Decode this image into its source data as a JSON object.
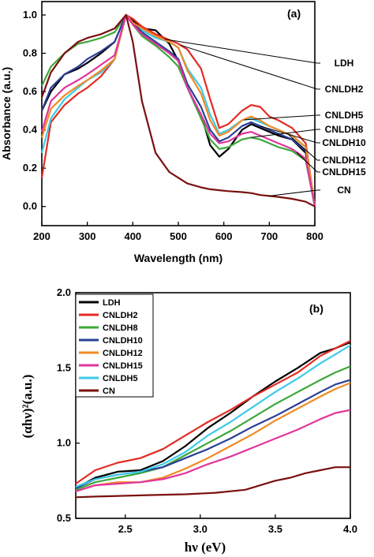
{
  "chart_data": [
    {
      "panel": "(a)",
      "type": "line",
      "xlabel": "Wavelength (nm)",
      "ylabel": "Absorbance (a.u.)",
      "xlim": [
        200,
        800
      ],
      "ylim": [
        -0.1,
        1.07
      ],
      "xticks": [
        "200",
        "300",
        "400",
        "500",
        "600",
        "700",
        "800"
      ],
      "yticks": [
        "0.0",
        "0.2",
        "0.4",
        "0.6",
        "0.8",
        "1.0"
      ],
      "annotations": [
        "LDH",
        "CNLDH2",
        "CNLDH5",
        "CNLDH8",
        "CNLDH10",
        "CNLDH12",
        "CNLDH15",
        "CN"
      ],
      "series": [
        {
          "name": "LDH",
          "color": "#000000",
          "x": [
            200,
            220,
            250,
            280,
            300,
            330,
            360,
            385,
            400,
            420,
            450,
            480,
            500,
            520,
            550,
            570,
            590,
            610,
            640,
            660,
            680,
            700,
            720,
            750,
            780,
            800
          ],
          "y": [
            0.5,
            0.6,
            0.69,
            0.72,
            0.75,
            0.8,
            0.86,
            1.0,
            0.97,
            0.93,
            0.92,
            0.85,
            0.76,
            0.62,
            0.48,
            0.32,
            0.26,
            0.3,
            0.4,
            0.43,
            0.41,
            0.39,
            0.37,
            0.35,
            0.28,
            0.0
          ]
        },
        {
          "name": "CNLDH2",
          "color": "#e32b22",
          "x": [
            200,
            220,
            250,
            280,
            300,
            330,
            360,
            385,
            400,
            420,
            450,
            480,
            500,
            520,
            550,
            570,
            590,
            610,
            640,
            660,
            680,
            700,
            720,
            750,
            780,
            800
          ],
          "y": [
            0.15,
            0.44,
            0.53,
            0.59,
            0.62,
            0.68,
            0.77,
            1.0,
            0.98,
            0.94,
            0.9,
            0.87,
            0.85,
            0.82,
            0.72,
            0.56,
            0.41,
            0.43,
            0.5,
            0.53,
            0.52,
            0.47,
            0.45,
            0.41,
            0.33,
            0.0
          ]
        },
        {
          "name": "CNLDH5",
          "color": "#3ecae8",
          "x": [
            200,
            220,
            250,
            280,
            300,
            330,
            360,
            385,
            400,
            420,
            450,
            480,
            500,
            520,
            550,
            570,
            590,
            610,
            640,
            660,
            680,
            700,
            720,
            750,
            780,
            800
          ],
          "y": [
            0.28,
            0.46,
            0.56,
            0.62,
            0.66,
            0.7,
            0.77,
            1.0,
            0.96,
            0.92,
            0.88,
            0.86,
            0.83,
            0.72,
            0.62,
            0.48,
            0.38,
            0.4,
            0.45,
            0.46,
            0.44,
            0.42,
            0.4,
            0.37,
            0.31,
            0.0
          ]
        },
        {
          "name": "CNLDH8",
          "color": "#3da83a",
          "x": [
            200,
            220,
            250,
            280,
            300,
            330,
            360,
            385,
            400,
            420,
            450,
            480,
            500,
            520,
            550,
            570,
            590,
            610,
            640,
            660,
            680,
            700,
            720,
            750,
            780,
            800
          ],
          "y": [
            0.63,
            0.73,
            0.8,
            0.85,
            0.86,
            0.88,
            0.91,
            1.0,
            0.95,
            0.89,
            0.84,
            0.78,
            0.73,
            0.62,
            0.46,
            0.35,
            0.3,
            0.31,
            0.35,
            0.36,
            0.35,
            0.33,
            0.31,
            0.29,
            0.24,
            0.0
          ]
        },
        {
          "name": "CNLDH10",
          "color": "#2b3f96",
          "x": [
            200,
            220,
            250,
            280,
            300,
            330,
            360,
            385,
            400,
            420,
            450,
            480,
            500,
            520,
            550,
            570,
            590,
            610,
            640,
            660,
            680,
            700,
            720,
            750,
            780,
            800
          ],
          "y": [
            0.5,
            0.62,
            0.69,
            0.73,
            0.77,
            0.81,
            0.86,
            1.0,
            0.96,
            0.91,
            0.86,
            0.81,
            0.77,
            0.64,
            0.52,
            0.4,
            0.34,
            0.36,
            0.42,
            0.44,
            0.42,
            0.4,
            0.38,
            0.35,
            0.29,
            0.0
          ]
        },
        {
          "name": "CNLDH12",
          "color": "#f08a24",
          "x": [
            200,
            220,
            250,
            280,
            300,
            330,
            360,
            385,
            400,
            420,
            450,
            480,
            500,
            520,
            550,
            570,
            590,
            610,
            640,
            660,
            680,
            700,
            720,
            750,
            780,
            800
          ],
          "y": [
            0.36,
            0.51,
            0.58,
            0.63,
            0.66,
            0.71,
            0.77,
            1.0,
            0.96,
            0.93,
            0.89,
            0.86,
            0.83,
            0.71,
            0.59,
            0.45,
            0.37,
            0.39,
            0.45,
            0.47,
            0.45,
            0.42,
            0.4,
            0.37,
            0.31,
            0.0
          ]
        },
        {
          "name": "CNLDH15",
          "color": "#e0359c",
          "x": [
            200,
            220,
            250,
            280,
            300,
            330,
            360,
            385,
            400,
            420,
            450,
            480,
            500,
            520,
            550,
            570,
            590,
            610,
            640,
            660,
            680,
            700,
            720,
            750,
            780,
            800
          ],
          "y": [
            0.39,
            0.55,
            0.62,
            0.66,
            0.69,
            0.74,
            0.79,
            1.0,
            0.95,
            0.9,
            0.85,
            0.8,
            0.76,
            0.62,
            0.48,
            0.38,
            0.33,
            0.34,
            0.38,
            0.39,
            0.37,
            0.35,
            0.33,
            0.3,
            0.25,
            0.0
          ]
        },
        {
          "name": "CN",
          "color": "#7a1010",
          "x": [
            200,
            220,
            250,
            280,
            300,
            330,
            360,
            385,
            400,
            420,
            450,
            480,
            500,
            520,
            550,
            570,
            590,
            610,
            640,
            660,
            680,
            700,
            720,
            750,
            780,
            800
          ],
          "y": [
            0.57,
            0.7,
            0.8,
            0.86,
            0.88,
            0.9,
            0.93,
            1.0,
            0.86,
            0.55,
            0.28,
            0.18,
            0.15,
            0.12,
            0.1,
            0.09,
            0.085,
            0.08,
            0.075,
            0.07,
            0.06,
            0.055,
            0.05,
            0.04,
            0.025,
            0.0
          ]
        }
      ]
    },
    {
      "panel": "(b)",
      "type": "line",
      "xlabel": "hν (eV)",
      "ylabel": "(αhν)²(a.u.)",
      "xlim": [
        2.17,
        4.0
      ],
      "ylim": [
        0.5,
        2.0
      ],
      "xticks": [
        "2.5",
        "3.0",
        "3.5",
        "4.0"
      ],
      "yticks": [
        "0.5",
        "1.0",
        "1.5",
        "2.0"
      ],
      "legend": "top-left",
      "series": [
        {
          "name": "LDH",
          "color": "#000000",
          "x": [
            2.17,
            2.3,
            2.45,
            2.6,
            2.75,
            2.9,
            3.05,
            3.2,
            3.35,
            3.5,
            3.65,
            3.8,
            3.9,
            4.0
          ],
          "y": [
            0.7,
            0.77,
            0.81,
            0.82,
            0.88,
            0.98,
            1.1,
            1.2,
            1.31,
            1.41,
            1.5,
            1.6,
            1.63,
            1.67
          ]
        },
        {
          "name": "CNLDH2",
          "color": "#e32b22",
          "x": [
            2.17,
            2.3,
            2.45,
            2.6,
            2.75,
            2.9,
            3.05,
            3.2,
            3.35,
            3.5,
            3.65,
            3.8,
            3.9,
            4.0
          ],
          "y": [
            0.73,
            0.82,
            0.87,
            0.9,
            0.96,
            1.05,
            1.14,
            1.22,
            1.31,
            1.39,
            1.47,
            1.58,
            1.63,
            1.68
          ]
        },
        {
          "name": "CNLDH8",
          "color": "#3da83a",
          "x": [
            2.17,
            2.3,
            2.45,
            2.6,
            2.75,
            2.9,
            3.05,
            3.2,
            3.35,
            3.5,
            3.65,
            3.8,
            3.9,
            4.0
          ],
          "y": [
            0.69,
            0.74,
            0.77,
            0.8,
            0.84,
            0.92,
            1.0,
            1.08,
            1.17,
            1.26,
            1.34,
            1.42,
            1.47,
            1.51
          ]
        },
        {
          "name": "CNLDH10",
          "color": "#2b3f96",
          "x": [
            2.17,
            2.3,
            2.45,
            2.6,
            2.75,
            2.9,
            3.05,
            3.2,
            3.35,
            3.5,
            3.65,
            3.8,
            3.9,
            4.0
          ],
          "y": [
            0.7,
            0.76,
            0.79,
            0.81,
            0.84,
            0.9,
            0.96,
            1.03,
            1.11,
            1.18,
            1.26,
            1.34,
            1.39,
            1.42
          ]
        },
        {
          "name": "CNLDH12",
          "color": "#f08a24",
          "x": [
            2.17,
            2.3,
            2.45,
            2.6,
            2.75,
            2.9,
            3.05,
            3.2,
            3.35,
            3.5,
            3.65,
            3.8,
            3.9,
            4.0
          ],
          "y": [
            0.68,
            0.72,
            0.74,
            0.74,
            0.77,
            0.83,
            0.9,
            0.98,
            1.06,
            1.15,
            1.23,
            1.31,
            1.36,
            1.4
          ]
        },
        {
          "name": "CNLDH15",
          "color": "#e0359c",
          "x": [
            2.17,
            2.3,
            2.45,
            2.6,
            2.75,
            2.9,
            3.05,
            3.2,
            3.35,
            3.5,
            3.65,
            3.8,
            3.9,
            4.0
          ],
          "y": [
            0.68,
            0.72,
            0.73,
            0.74,
            0.76,
            0.8,
            0.86,
            0.91,
            0.97,
            1.03,
            1.09,
            1.16,
            1.2,
            1.22
          ]
        },
        {
          "name": "CNLDH5",
          "color": "#3ecae8",
          "x": [
            2.17,
            2.3,
            2.45,
            2.6,
            2.75,
            2.9,
            3.05,
            3.2,
            3.35,
            3.5,
            3.65,
            3.8,
            3.9,
            4.0
          ],
          "y": [
            0.71,
            0.76,
            0.79,
            0.81,
            0.86,
            0.94,
            1.05,
            1.14,
            1.24,
            1.34,
            1.43,
            1.53,
            1.59,
            1.65
          ]
        },
        {
          "name": "CN",
          "color": "#7a1010",
          "x": [
            2.17,
            2.3,
            2.5,
            2.7,
            2.9,
            3.1,
            3.3,
            3.4,
            3.5,
            3.6,
            3.7,
            3.8,
            3.9,
            4.0
          ],
          "y": [
            0.64,
            0.645,
            0.65,
            0.655,
            0.66,
            0.67,
            0.69,
            0.72,
            0.75,
            0.77,
            0.8,
            0.82,
            0.84,
            0.84
          ]
        }
      ]
    }
  ]
}
